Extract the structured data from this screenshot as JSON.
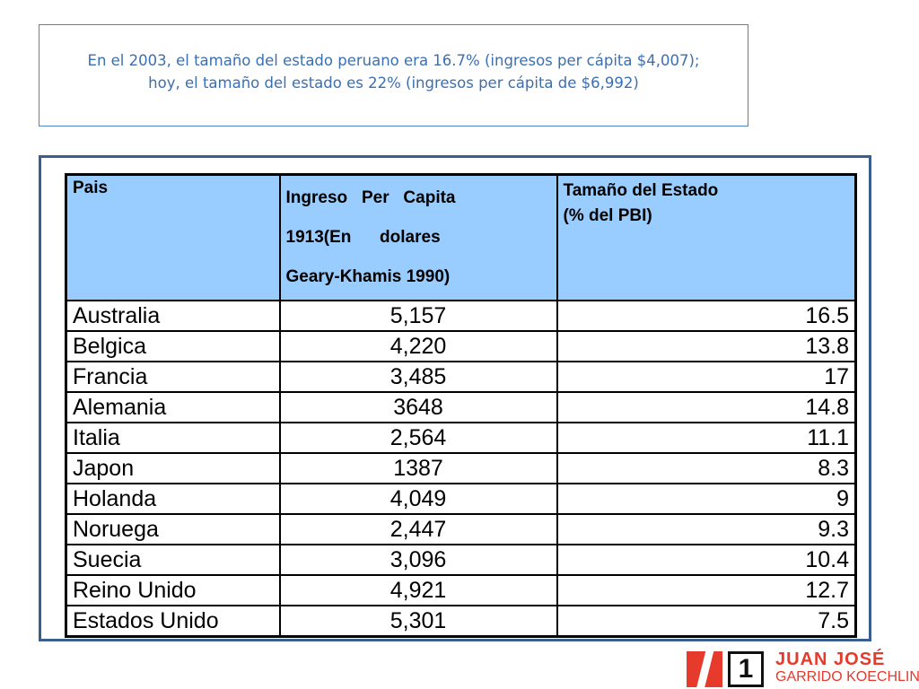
{
  "title": {
    "line1": "En el 2003, el tamaño del estado peruano era 16.7% (ingresos per cápita $4,007);",
    "line2": "hoy, el tamaño del estado es 22% (ingresos per cápita de $6,992)"
  },
  "table": {
    "headers": {
      "country": "Pais",
      "income_line1": "Ingreso   Per   Capita",
      "income_line2": "1913(En      dolares",
      "income_line3": "Geary-Khamis 1990)",
      "state_line1": "Tamaño del Estado",
      "state_line2": "(% del PBI)"
    },
    "rows": [
      {
        "country": "Australia",
        "income": "5,157",
        "state": "16.5"
      },
      {
        "country": "Belgica",
        "income": "4,220",
        "state": "13.8"
      },
      {
        "country": "Francia",
        "income": "3,485",
        "state": "17"
      },
      {
        "country": "Alemania",
        "income": "3648",
        "state": "14.8"
      },
      {
        "country": "Italia",
        "income": "2,564",
        "state": "11.1"
      },
      {
        "country": "Japon",
        "income": "1387",
        "state": "8.3"
      },
      {
        "country": "Holanda",
        "income": "4,049",
        "state": "9"
      },
      {
        "country": "Noruega",
        "income": "2,447",
        "state": "9.3"
      },
      {
        "country": "Suecia",
        "income": "3,096",
        "state": "10.4"
      },
      {
        "country": "Reino Unido",
        "income": "4,921",
        "state": "12.7"
      },
      {
        "country": "Estados Unido",
        "income": "5,301",
        "state": "7.5"
      }
    ]
  },
  "logo": {
    "number": "1",
    "name_line1": "JUAN JOSÉ",
    "name_line2": "GARRIDO KOECHLIN",
    "brand_color": "#e53a2c"
  },
  "colors": {
    "title_text": "#3b6fb0",
    "header_fill": "#99ccff"
  }
}
